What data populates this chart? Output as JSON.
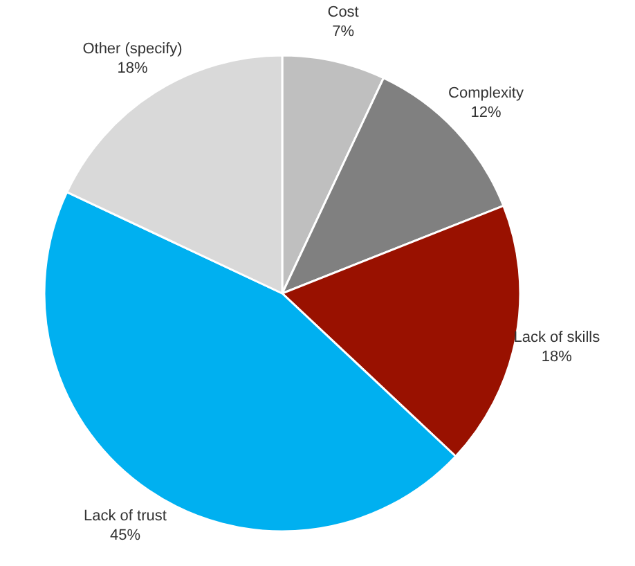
{
  "chart_data": {
    "type": "pie",
    "categories": [
      "Cost",
      "Complexity",
      "Lack of skills",
      "Lack of trust",
      "Other (specify)"
    ],
    "values": [
      7,
      12,
      18,
      45,
      18
    ],
    "value_labels": [
      "7%",
      "12%",
      "18%",
      "45%",
      "18%"
    ],
    "colors": [
      "#bfbfbf",
      "#808080",
      "#991100",
      "#00b0f0",
      "#d9d9d9"
    ]
  }
}
